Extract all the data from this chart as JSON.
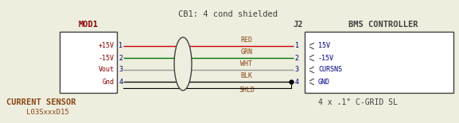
{
  "bg_color": "#eeeedf",
  "title": "CB1: 4 cond shielded",
  "title_color": "#404040",
  "mod1_label": "MOD1",
  "mod1_pin_color": "#8B0000",
  "mod1_pin_num_color": "#000080",
  "mod1_pins": [
    "+15V",
    "-15V",
    "Vout",
    "Gnd"
  ],
  "mod1_pin_nums": [
    "1",
    "2",
    "3",
    "4"
  ],
  "bms_label": "BMS CONTROLLER",
  "j2_label": "J2",
  "bms_pins": [
    "15V",
    "-15V",
    "CURSNS",
    "GND"
  ],
  "bms_pin_color": "#000080",
  "wire_colors": [
    "#cc0000",
    "#007700",
    "#999999",
    "#111111"
  ],
  "wire_labels": [
    "RED",
    "GRN",
    "WHT",
    "BLK"
  ],
  "wire_label_color": "#8B4513",
  "wire_nums": [
    "1",
    "2",
    "3",
    "4"
  ],
  "wire_num_color": "#000080",
  "shld_label": "SHLD",
  "shld_label_color": "#8B4513",
  "bottom_left_label1": "CURRENT SENSOR",
  "bottom_left_label2": "L03SxxxD15",
  "bottom_left_color": "#8B4513",
  "bottom_right_label": "4 x .1\" C-GRID SL",
  "bottom_right_color": "#404040",
  "box_color": "#404040",
  "line_color": "#404040",
  "white": "#ffffff"
}
